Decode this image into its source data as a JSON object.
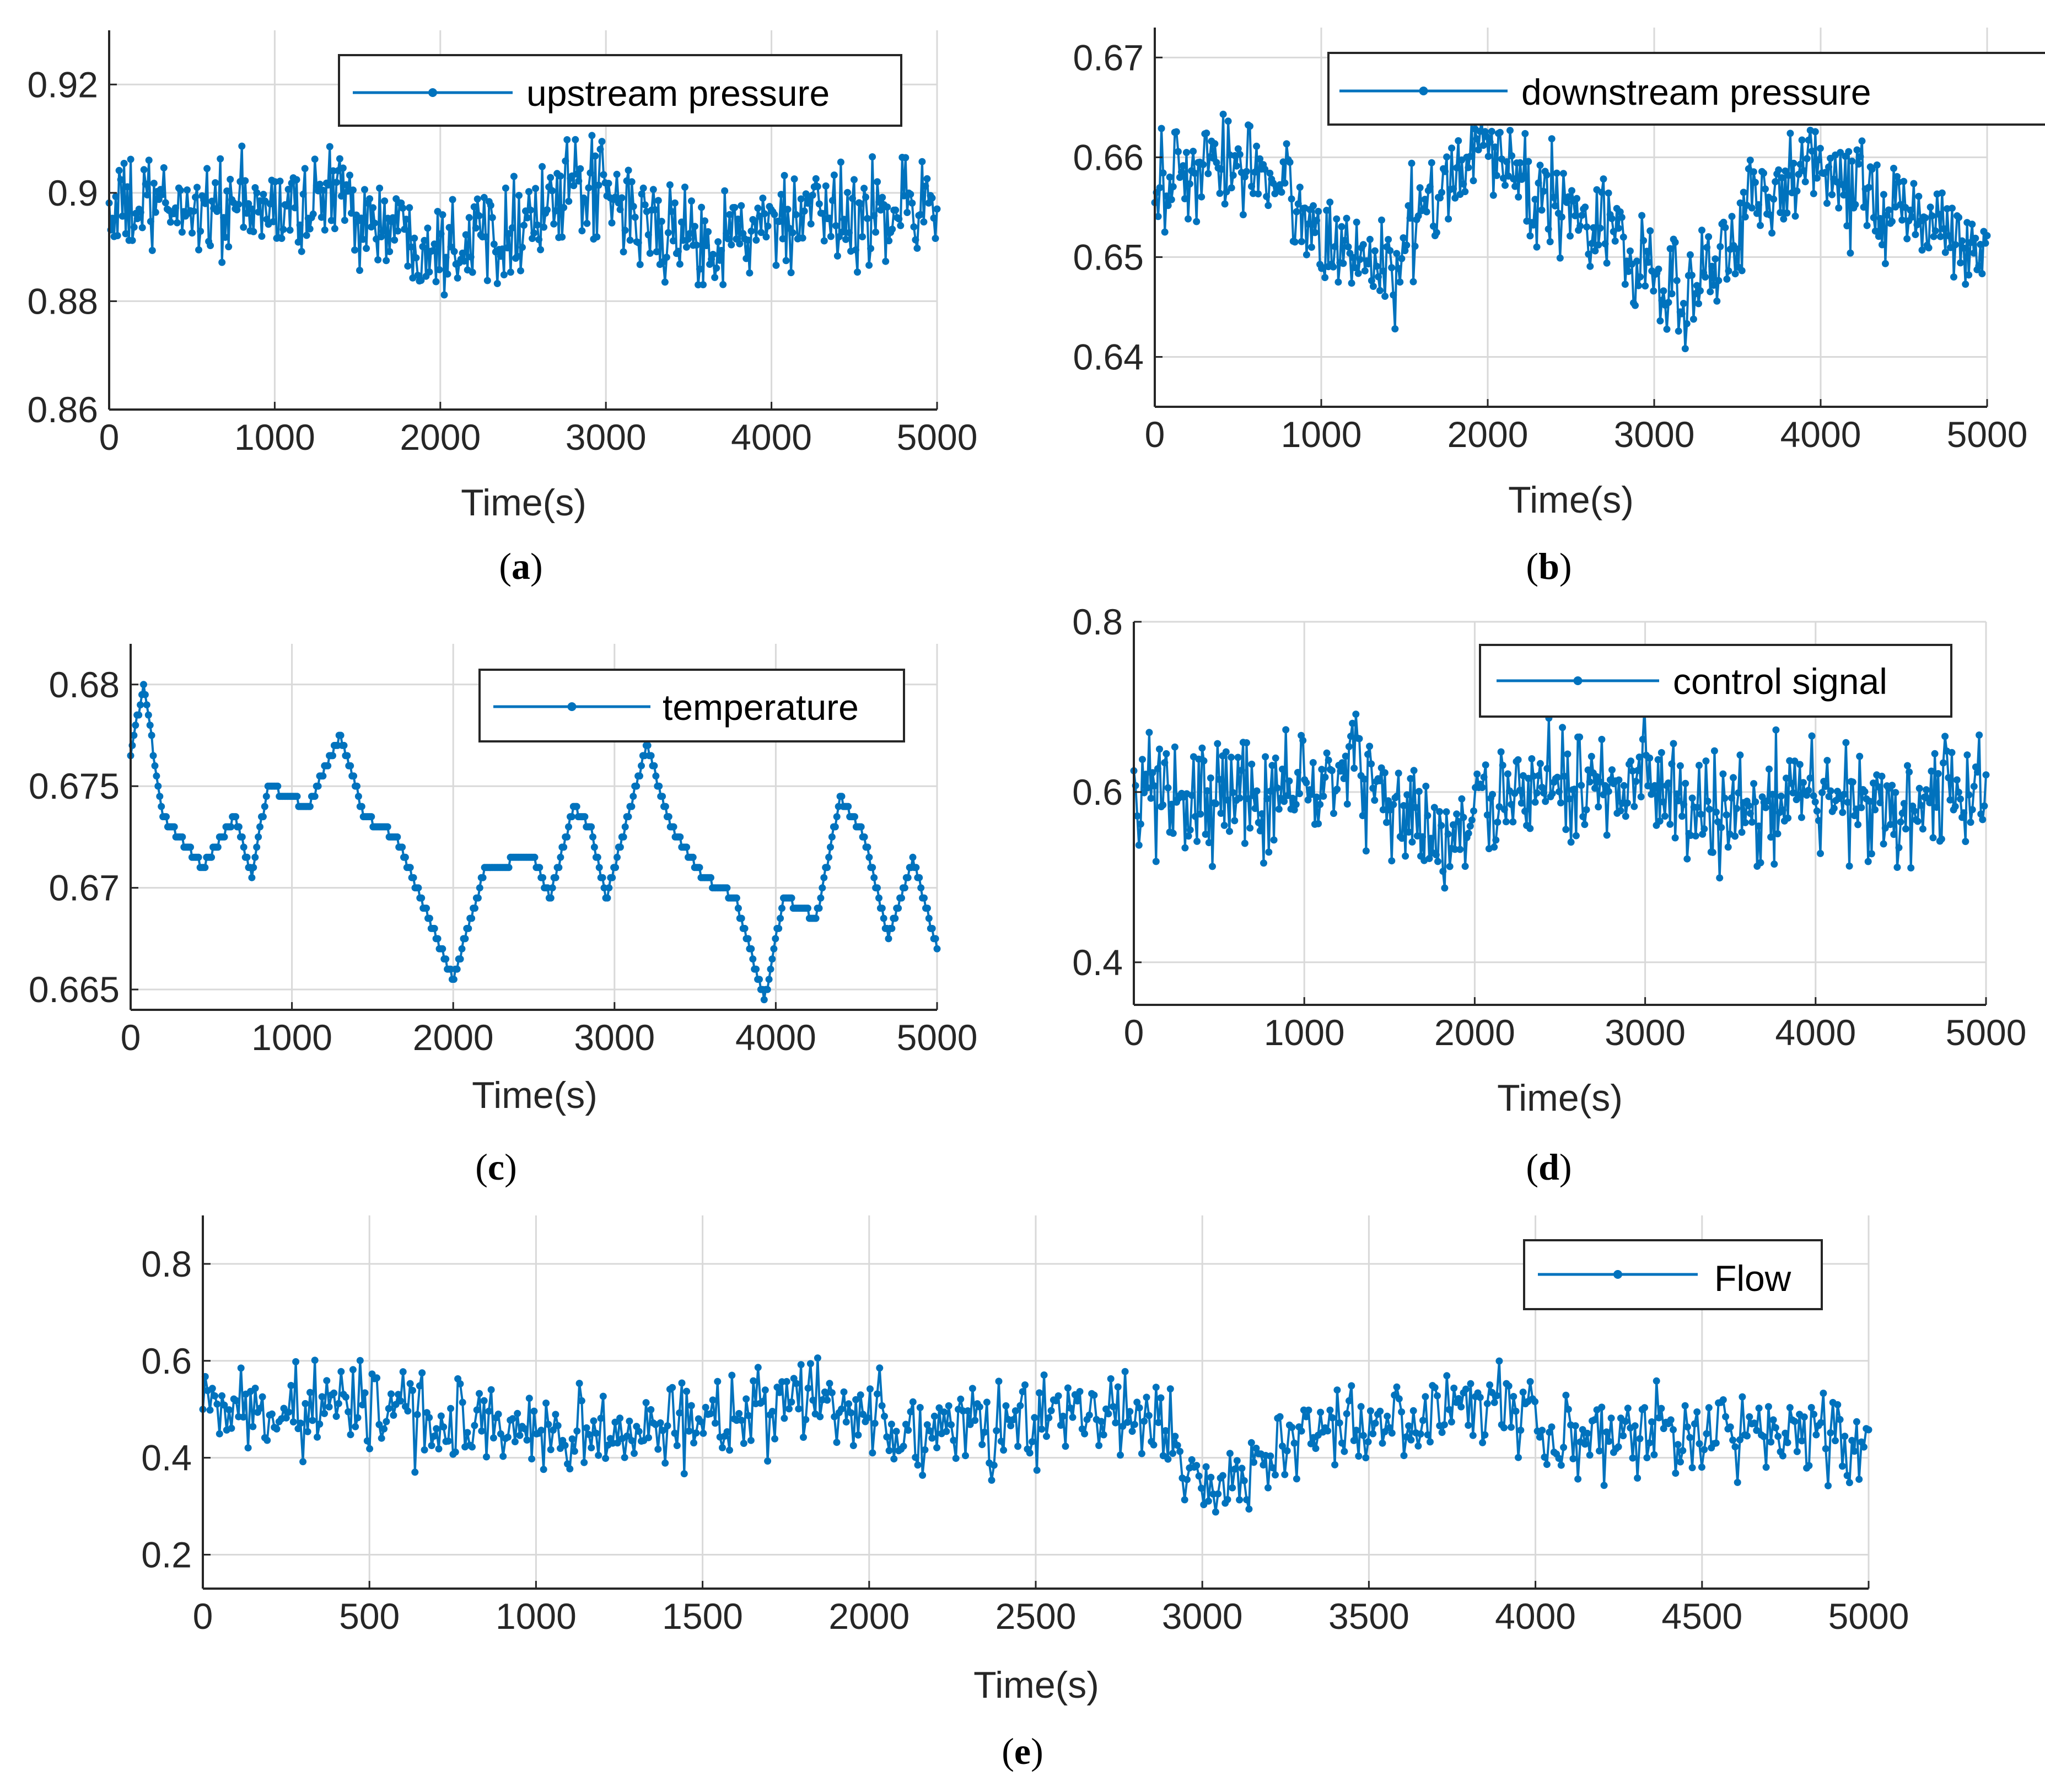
{
  "colors": {
    "series": "#0072BD",
    "grid": "#d9d9d9",
    "axis": "#262626"
  },
  "chart_data": [
    {
      "id": "a",
      "type": "line",
      "caption_letter": "a",
      "legend": "upstream pressure",
      "legend_position": "top-right",
      "xlabel": "Time(s)",
      "ylabel": "",
      "xlim": [
        0,
        5000
      ],
      "ylim": [
        0.86,
        0.93
      ],
      "xticks": [
        0,
        1000,
        2000,
        3000,
        4000,
        5000
      ],
      "xtick_labels": [
        "0",
        "1000",
        "2000",
        "3000",
        "4000",
        "5000"
      ],
      "yticks": [
        0.86,
        0.88,
        0.9,
        0.92
      ],
      "ytick_labels": [
        "0.86",
        "0.88",
        "0.9",
        "0.92"
      ],
      "grid": true,
      "n_points": 500,
      "noise": 0.0085,
      "trend": [
        [
          0,
          0.8965
        ],
        [
          500,
          0.8975
        ],
        [
          1000,
          0.8965
        ],
        [
          1400,
          0.9
        ],
        [
          1600,
          0.8945
        ],
        [
          2000,
          0.891
        ],
        [
          2500,
          0.895
        ],
        [
          2900,
          0.901
        ],
        [
          3200,
          0.895
        ],
        [
          3500,
          0.891
        ],
        [
          4000,
          0.8935
        ],
        [
          4500,
          0.8955
        ],
        [
          5000,
          0.899
        ]
      ]
    },
    {
      "id": "b",
      "type": "line",
      "caption_letter": "b",
      "legend": "downstream pressure",
      "legend_position": "top-right",
      "xlabel": "Time(s)",
      "ylabel": "",
      "xlim": [
        0,
        5000
      ],
      "ylim": [
        0.635,
        0.673
      ],
      "xticks": [
        0,
        1000,
        2000,
        3000,
        4000,
        5000
      ],
      "xtick_labels": [
        "0",
        "1000",
        "2000",
        "3000",
        "4000",
        "5000"
      ],
      "yticks": [
        0.64,
        0.65,
        0.66,
        0.67
      ],
      "ytick_labels": [
        "0.64",
        "0.65",
        "0.66",
        "0.67"
      ],
      "grid": true,
      "n_points": 500,
      "noise": 0.0048,
      "trend": [
        [
          0,
          0.657
        ],
        [
          600,
          0.66
        ],
        [
          1000,
          0.652
        ],
        [
          1400,
          0.648
        ],
        [
          1900,
          0.662
        ],
        [
          2300,
          0.656
        ],
        [
          2700,
          0.654
        ],
        [
          3100,
          0.645
        ],
        [
          3500,
          0.653
        ],
        [
          3900,
          0.66
        ],
        [
          4400,
          0.655
        ],
        [
          5000,
          0.651
        ]
      ]
    },
    {
      "id": "c",
      "type": "line",
      "caption_letter": "c",
      "legend": "temperature",
      "legend_position": "top-right",
      "xlabel": "Time(s)",
      "ylabel": "",
      "xlim": [
        0,
        5000
      ],
      "ylim": [
        0.664,
        0.682
      ],
      "xticks": [
        0,
        1000,
        2000,
        3000,
        4000,
        5000
      ],
      "xtick_labels": [
        "0",
        "1000",
        "2000",
        "3000",
        "4000",
        "5000"
      ],
      "yticks": [
        0.665,
        0.67,
        0.675,
        0.68
      ],
      "ytick_labels": [
        "0.665",
        "0.67",
        "0.675",
        "0.68"
      ],
      "grid": true,
      "n_points": 500,
      "noise": 0.0,
      "quantize": 0.0005,
      "trend": [
        [
          0,
          0.6765
        ],
        [
          80,
          0.68
        ],
        [
          200,
          0.6735
        ],
        [
          450,
          0.671
        ],
        [
          650,
          0.6735
        ],
        [
          750,
          0.6705
        ],
        [
          850,
          0.675
        ],
        [
          1100,
          0.674
        ],
        [
          1300,
          0.6775
        ],
        [
          1450,
          0.6735
        ],
        [
          1650,
          0.6725
        ],
        [
          1800,
          0.6695
        ],
        [
          2000,
          0.6655
        ],
        [
          2200,
          0.671
        ],
        [
          2500,
          0.6715
        ],
        [
          2600,
          0.6695
        ],
        [
          2750,
          0.674
        ],
        [
          2850,
          0.673
        ],
        [
          2950,
          0.6695
        ],
        [
          3200,
          0.677
        ],
        [
          3350,
          0.673
        ],
        [
          3550,
          0.6705
        ],
        [
          3750,
          0.6695
        ],
        [
          3930,
          0.6645
        ],
        [
          4050,
          0.6695
        ],
        [
          4250,
          0.6685
        ],
        [
          4400,
          0.6745
        ],
        [
          4550,
          0.6725
        ],
        [
          4700,
          0.6675
        ],
        [
          4850,
          0.6715
        ],
        [
          5000,
          0.667
        ]
      ]
    },
    {
      "id": "d",
      "type": "line",
      "caption_letter": "d",
      "legend": "control signal",
      "legend_position": "top-right",
      "xlabel": "Time(s)",
      "ylabel": "",
      "xlim": [
        0,
        5000
      ],
      "ylim": [
        0.35,
        0.8
      ],
      "xticks": [
        0,
        1000,
        2000,
        3000,
        4000,
        5000
      ],
      "xtick_labels": [
        "0",
        "1000",
        "2000",
        "3000",
        "4000",
        "5000"
      ],
      "yticks": [
        0.4,
        0.6,
        0.8
      ],
      "ytick_labels": [
        "0.4",
        "0.6",
        "0.8"
      ],
      "grid": true,
      "n_points": 500,
      "noise": 0.065,
      "trend": [
        [
          0,
          0.6
        ],
        [
          500,
          0.59
        ],
        [
          1000,
          0.61
        ],
        [
          1300,
          0.625
        ],
        [
          1600,
          0.565
        ],
        [
          1800,
          0.545
        ],
        [
          2100,
          0.59
        ],
        [
          2600,
          0.6
        ],
        [
          3000,
          0.615
        ],
        [
          3200,
          0.575
        ],
        [
          3700,
          0.585
        ],
        [
          4000,
          0.6
        ],
        [
          4500,
          0.59
        ],
        [
          5000,
          0.6
        ]
      ]
    },
    {
      "id": "e",
      "type": "line",
      "caption_letter": "e",
      "legend": "Flow",
      "legend_position": "top-right",
      "xlabel": "Time(s)",
      "ylabel": "",
      "xlim": [
        0,
        5000
      ],
      "ylim": [
        0.13,
        0.9
      ],
      "xticks": [
        0,
        500,
        1000,
        1500,
        2000,
        2500,
        3000,
        3500,
        4000,
        4500,
        5000
      ],
      "xtick_labels": [
        "0",
        "500",
        "1000",
        "1500",
        "2000",
        "2500",
        "3000",
        "3500",
        "4000",
        "4500",
        "5000"
      ],
      "yticks": [
        0.2,
        0.4,
        0.6,
        0.8
      ],
      "ytick_labels": [
        "0.2",
        "0.4",
        "0.6",
        "0.8"
      ],
      "grid": true,
      "n_points": 700,
      "noise": 0.085,
      "trend": [
        [
          0,
          0.49
        ],
        [
          500,
          0.51
        ],
        [
          800,
          0.47
        ],
        [
          1200,
          0.44
        ],
        [
          1600,
          0.48
        ],
        [
          1850,
          0.55
        ],
        [
          2100,
          0.45
        ],
        [
          2500,
          0.47
        ],
        [
          2800,
          0.49
        ],
        [
          3050,
          0.33
        ],
        [
          3300,
          0.46
        ],
        [
          3600,
          0.47
        ],
        [
          3800,
          0.5
        ],
        [
          4100,
          0.45
        ],
        [
          4500,
          0.46
        ],
        [
          5000,
          0.44
        ]
      ]
    }
  ]
}
